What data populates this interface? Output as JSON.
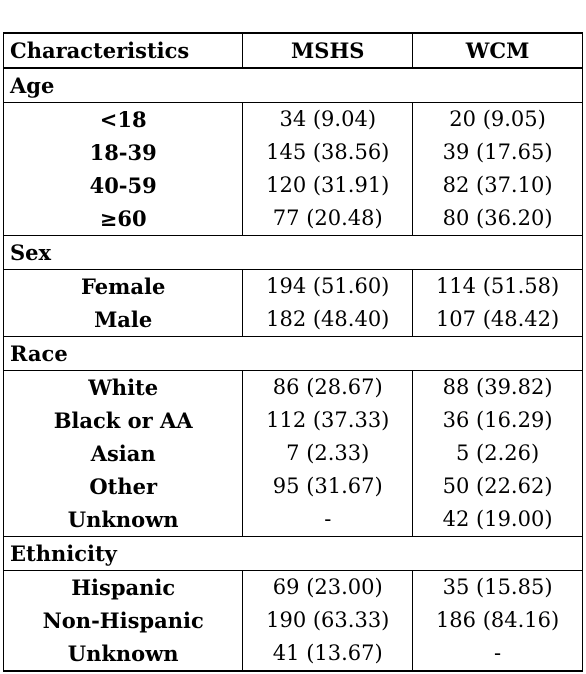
{
  "caption_fragment": "",
  "table": {
    "headers": {
      "characteristics": "Characteristics",
      "mshs": "MSHS",
      "wcm": "WCM"
    },
    "sections": {
      "age": {
        "title": "Age",
        "rows": [
          {
            "label": "<18",
            "mshs": "34 (9.04)",
            "wcm": "20 (9.05)"
          },
          {
            "label": "18-39",
            "mshs": "145 (38.56)",
            "wcm": "39 (17.65)"
          },
          {
            "label": "40-59",
            "mshs": "120 (31.91)",
            "wcm": "82 (37.10)"
          },
          {
            "label": "≥60",
            "mshs": "77 (20.48)",
            "wcm": "80 (36.20)"
          }
        ]
      },
      "sex": {
        "title": "Sex",
        "rows": [
          {
            "label": "Female",
            "mshs": "194 (51.60)",
            "wcm": "114 (51.58)"
          },
          {
            "label": "Male",
            "mshs": "182 (48.40)",
            "wcm": "107 (48.42)"
          }
        ]
      },
      "race": {
        "title": "Race",
        "rows": [
          {
            "label": "White",
            "mshs": "86 (28.67)",
            "wcm": "88 (39.82)"
          },
          {
            "label": "Black or AA",
            "mshs": "112 (37.33)",
            "wcm": "36 (16.29)"
          },
          {
            "label": "Asian",
            "mshs": "7 (2.33)",
            "wcm": "5 (2.26)"
          },
          {
            "label": "Other",
            "mshs": "95 (31.67)",
            "wcm": "50 (22.62)"
          },
          {
            "label": "Unknown",
            "mshs": "-",
            "wcm": "42 (19.00)"
          }
        ]
      },
      "ethnicity": {
        "title": "Ethnicity",
        "rows": [
          {
            "label": "Hispanic",
            "mshs": "69 (23.00)",
            "wcm": "35 (15.85)"
          },
          {
            "label": "Non-Hispanic",
            "mshs": "190 (63.33)",
            "wcm": "186 (84.16)"
          },
          {
            "label": "Unknown",
            "mshs": "41 (13.67)",
            "wcm": "-"
          }
        ]
      }
    }
  }
}
